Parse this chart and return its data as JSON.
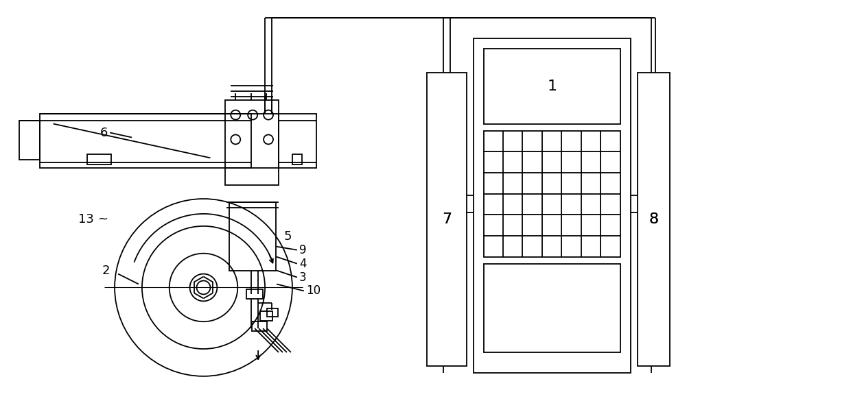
{
  "bg_color": "#ffffff",
  "line_color": "#000000",
  "lw": 1.3,
  "fig_width": 12.4,
  "fig_height": 6.04,
  "label_fs": 13
}
